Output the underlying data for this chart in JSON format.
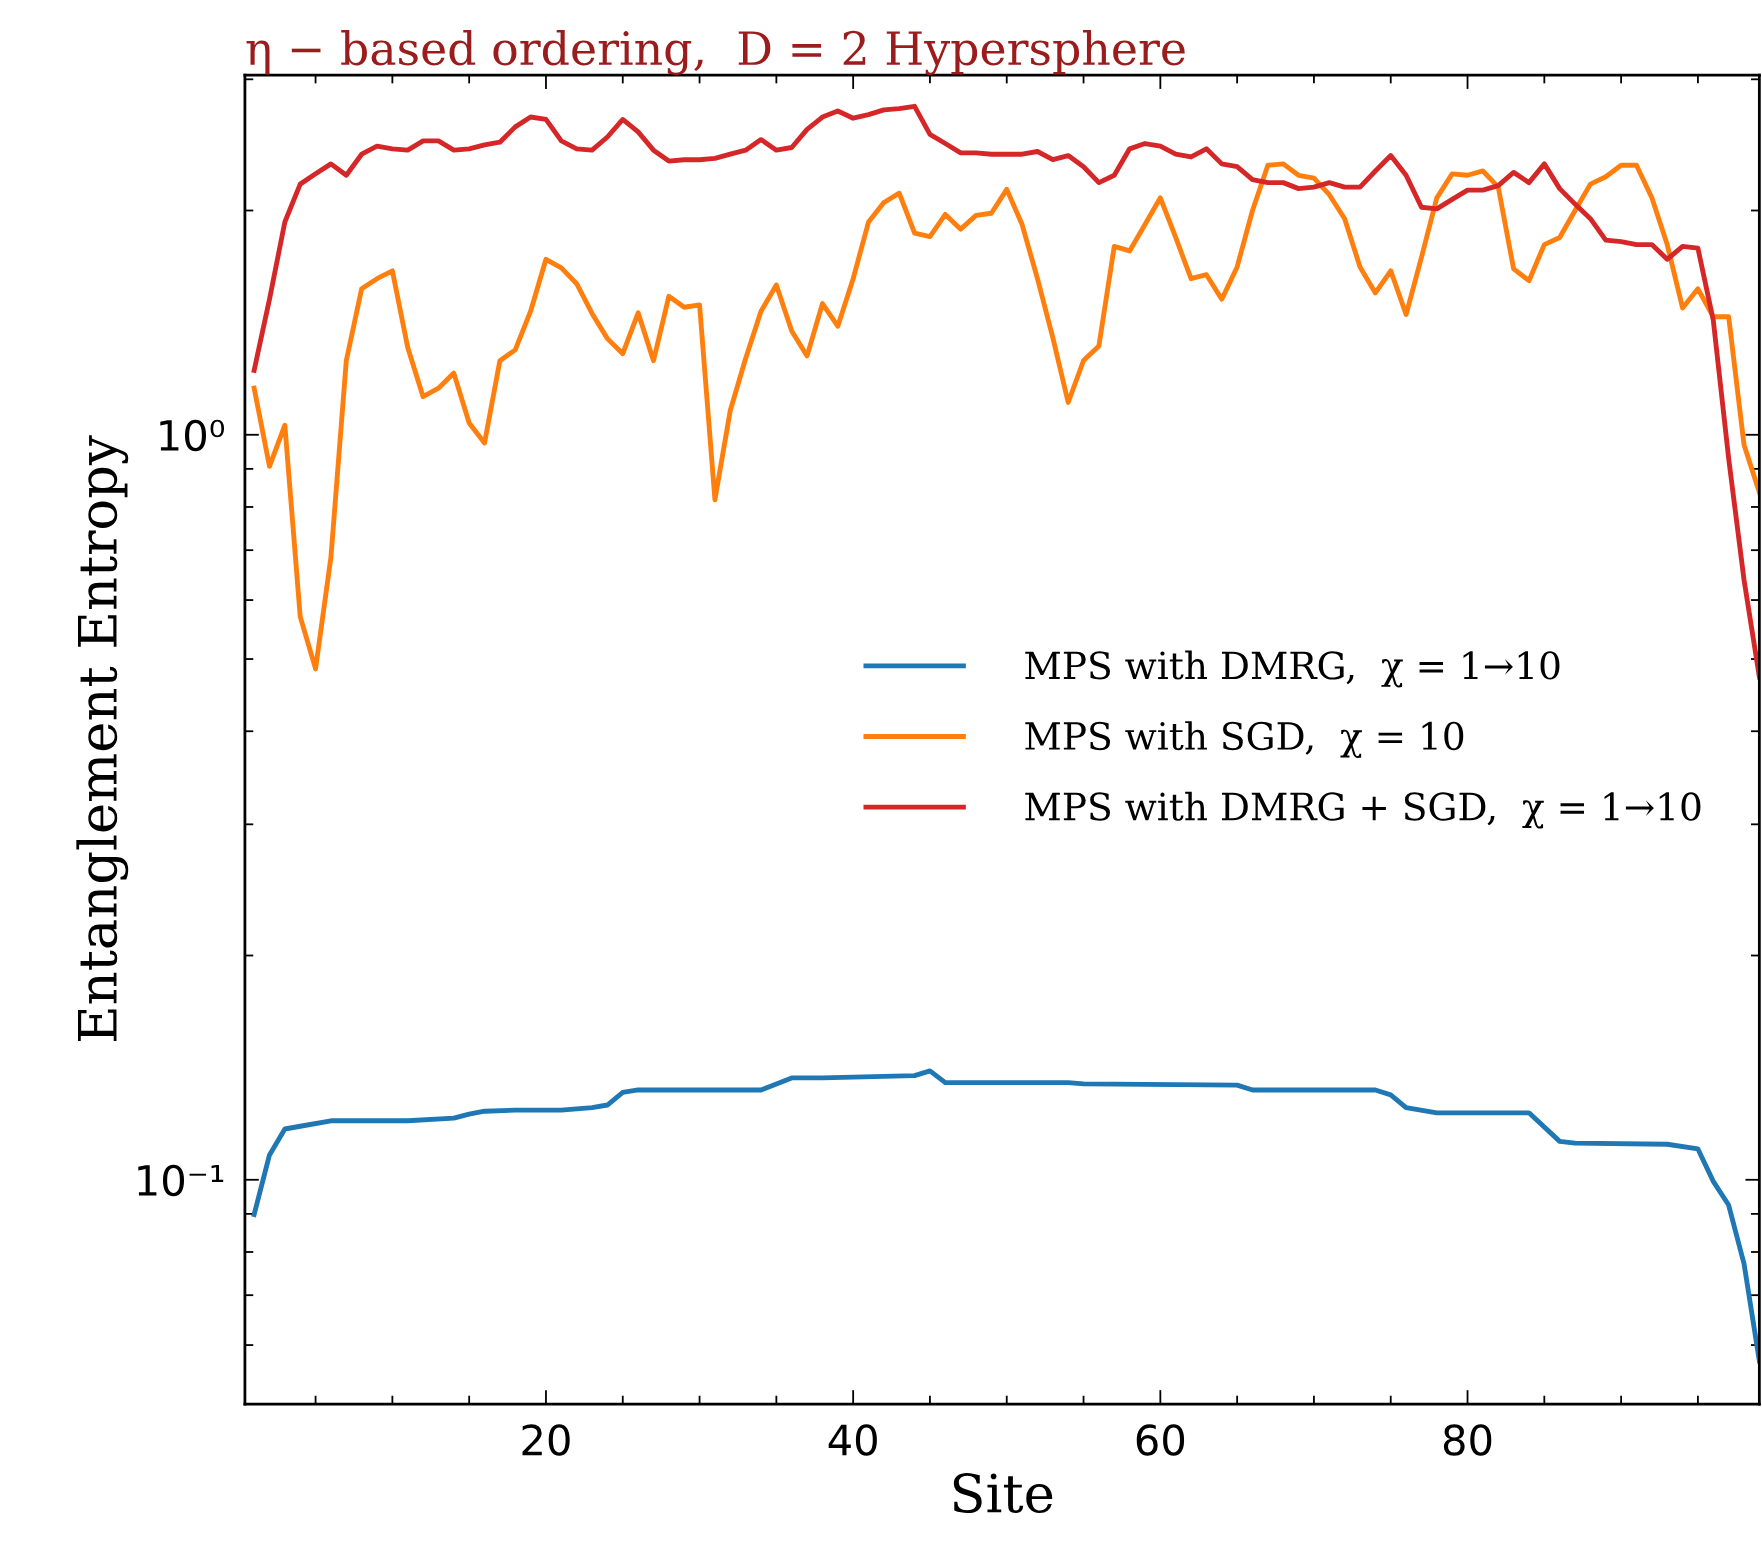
{
  "chart_data": {
    "type": "line",
    "title": "η − based ordering,  D = 2 Hypersphere",
    "xlabel": "Site",
    "ylabel": "Entanglement Entropy",
    "log": "y",
    "xlim": [
      0.4,
      99
    ],
    "ylim": [
      0.05,
      3.04
    ],
    "xticks": [
      20,
      40,
      60,
      80
    ],
    "yticks": [
      {
        "value": 0.1,
        "label": "10⁻¹"
      },
      {
        "value": 1,
        "label": "10⁰"
      }
    ],
    "legend": "center right",
    "series": [
      {
        "name": "MPS with DMRG,  χ = 1→10",
        "color": "#1f77b4",
        "x": [
          1,
          2,
          3,
          4,
          6,
          11,
          14,
          15,
          16,
          18,
          21,
          23,
          24,
          25,
          26,
          34,
          36,
          38,
          44,
          45,
          46,
          54,
          55,
          65,
          66,
          74,
          75,
          76,
          78,
          84,
          86,
          87,
          93,
          95,
          96,
          97,
          98,
          99
        ],
        "values": [
          0.0898,
          0.108,
          0.117,
          0.118,
          0.12,
          0.12,
          0.121,
          0.1225,
          0.1236,
          0.124,
          0.124,
          0.125,
          0.126,
          0.131,
          0.132,
          0.132,
          0.137,
          0.137,
          0.138,
          0.14,
          0.135,
          0.135,
          0.1345,
          0.134,
          0.132,
          0.132,
          0.13,
          0.125,
          0.123,
          0.123,
          0.1126,
          0.112,
          0.1116,
          0.11,
          0.0995,
          0.0925,
          0.0772,
          0.0571
        ]
      },
      {
        "name": "MPS with SGD,  χ = 10",
        "color": "#ff7f0e",
        "x": [
          1,
          2,
          3,
          4,
          5,
          6,
          7,
          8,
          9,
          10,
          11,
          12,
          13,
          14,
          15,
          16,
          17,
          18,
          19,
          20,
          21,
          22,
          23,
          24,
          25,
          26,
          27,
          28,
          29,
          30,
          31,
          32,
          33,
          34,
          35,
          36,
          37,
          38,
          39,
          40,
          41,
          42,
          43,
          44,
          45,
          46,
          47,
          48,
          49,
          50,
          51,
          52,
          53,
          54,
          55,
          56,
          57,
          58,
          59,
          60,
          61,
          62,
          63,
          64,
          65,
          66,
          67,
          68,
          69,
          70,
          71,
          72,
          73,
          74,
          75,
          76,
          77,
          78,
          79,
          80,
          81,
          82,
          83,
          84,
          85,
          86,
          87,
          88,
          89,
          90,
          91,
          92,
          93,
          94,
          95,
          96,
          97,
          98,
          99
        ],
        "values": [
          1.155,
          0.907,
          1.03,
          0.57,
          0.485,
          0.685,
          1.257,
          1.57,
          1.62,
          1.66,
          1.31,
          1.125,
          1.155,
          1.21,
          1.037,
          0.975,
          1.257,
          1.3,
          1.465,
          1.72,
          1.675,
          1.595,
          1.455,
          1.346,
          1.285,
          1.458,
          1.257,
          1.534,
          1.483,
          1.494,
          0.818,
          1.078,
          1.266,
          1.465,
          1.589,
          1.378,
          1.276,
          1.5,
          1.399,
          1.62,
          1.93,
          2.05,
          2.11,
          1.865,
          1.845,
          1.976,
          1.888,
          1.97,
          1.983,
          2.135,
          1.915,
          1.62,
          1.35,
          1.105,
          1.258,
          1.316,
          1.79,
          1.765,
          1.915,
          2.08,
          1.84,
          1.62,
          1.64,
          1.52,
          1.68,
          2.0,
          2.3,
          2.31,
          2.23,
          2.21,
          2.1,
          1.95,
          1.68,
          1.55,
          1.66,
          1.45,
          1.73,
          2.08,
          2.24,
          2.23,
          2.26,
          2.15,
          1.67,
          1.61,
          1.8,
          1.84,
          2.0,
          2.17,
          2.22,
          2.3,
          2.3,
          2.08,
          1.8,
          1.48,
          1.57,
          1.44,
          1.44,
          0.97,
          0.837
        ]
      },
      {
        "name": "MPS with DMRG + SGD,  χ = 1→10",
        "color": "#d62728",
        "x": [
          1,
          2,
          3,
          4,
          5,
          6,
          7,
          8,
          9,
          10,
          11,
          12,
          13,
          14,
          15,
          16,
          17,
          18,
          19,
          20,
          21,
          22,
          23,
          24,
          25,
          26,
          27,
          28,
          29,
          30,
          31,
          32,
          33,
          34,
          35,
          36,
          37,
          38,
          39,
          40,
          41,
          42,
          43,
          44,
          45,
          46,
          47,
          48,
          49,
          50,
          51,
          52,
          53,
          54,
          55,
          56,
          57,
          58,
          59,
          60,
          61,
          62,
          63,
          64,
          65,
          66,
          67,
          68,
          69,
          70,
          71,
          72,
          73,
          74,
          75,
          76,
          77,
          78,
          79,
          80,
          81,
          82,
          83,
          84,
          85,
          86,
          87,
          88,
          89,
          90,
          91,
          92,
          93,
          94,
          95,
          96,
          97,
          98,
          99
        ],
        "values": [
          1.22,
          1.52,
          1.93,
          2.17,
          2.24,
          2.31,
          2.23,
          2.38,
          2.44,
          2.42,
          2.41,
          2.48,
          2.48,
          2.41,
          2.42,
          2.45,
          2.47,
          2.59,
          2.67,
          2.65,
          2.48,
          2.42,
          2.41,
          2.51,
          2.65,
          2.55,
          2.41,
          2.33,
          2.34,
          2.34,
          2.35,
          2.38,
          2.41,
          2.49,
          2.41,
          2.43,
          2.57,
          2.67,
          2.72,
          2.66,
          2.69,
          2.73,
          2.74,
          2.76,
          2.53,
          2.46,
          2.39,
          2.39,
          2.38,
          2.38,
          2.38,
          2.4,
          2.34,
          2.37,
          2.29,
          2.18,
          2.23,
          2.42,
          2.46,
          2.44,
          2.38,
          2.36,
          2.42,
          2.31,
          2.29,
          2.2,
          2.18,
          2.18,
          2.14,
          2.15,
          2.18,
          2.15,
          2.15,
          2.26,
          2.37,
          2.23,
          2.02,
          2.01,
          2.07,
          2.13,
          2.13,
          2.16,
          2.25,
          2.18,
          2.31,
          2.14,
          2.04,
          1.95,
          1.825,
          1.817,
          1.8,
          1.8,
          1.72,
          1.79,
          1.78,
          1.425,
          0.93,
          0.639,
          0.473
        ]
      }
    ]
  }
}
